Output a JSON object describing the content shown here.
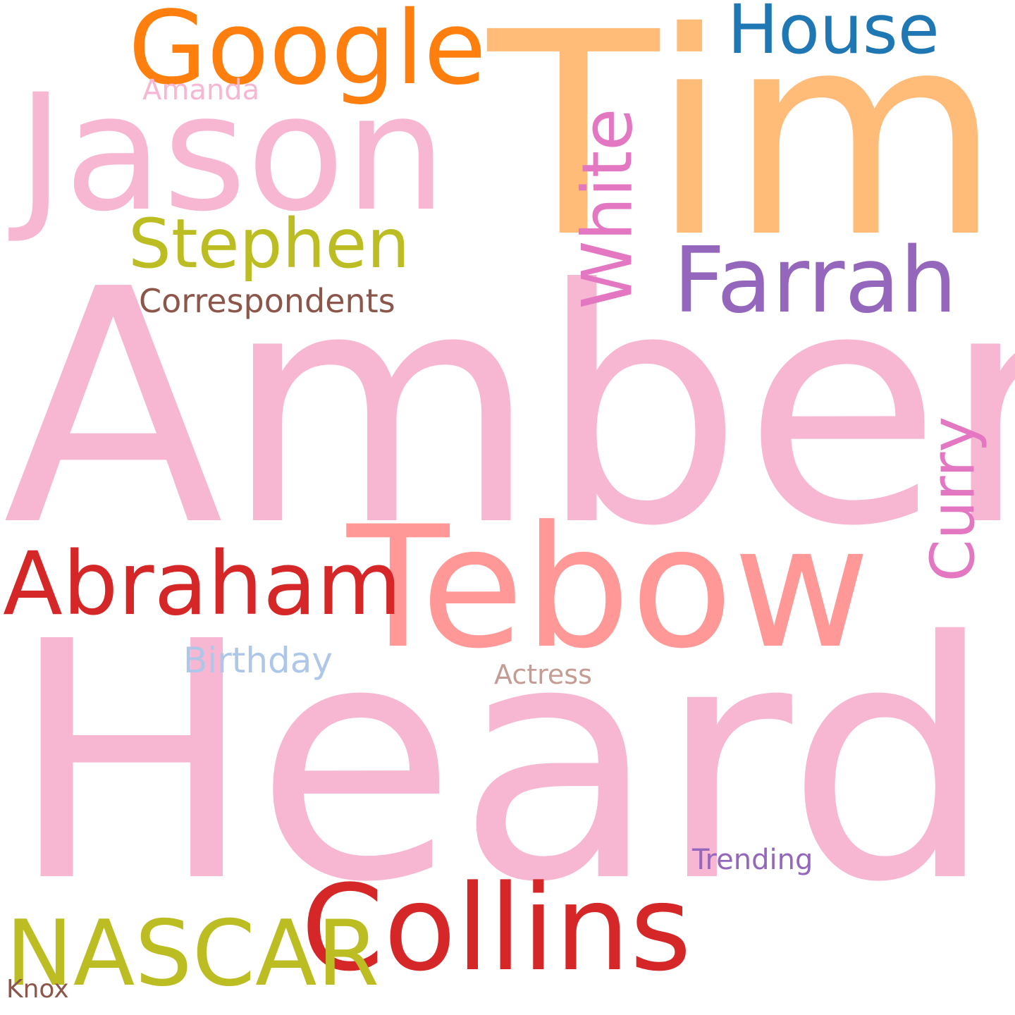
{
  "words": [
    {
      "text": "Heard",
      "color": "#f7b6d2"
    },
    {
      "text": "Amber",
      "color": "#f7b6d2"
    },
    {
      "text": "Tim",
      "color": "#ffbb78"
    },
    {
      "text": "Jason",
      "color": "#f7b6d2"
    },
    {
      "text": "Tebow",
      "color": "#ff9896"
    },
    {
      "text": "Collins",
      "color": "#d62728"
    },
    {
      "text": "Google",
      "color": "#ff7f0e"
    },
    {
      "text": "Abraham",
      "color": "#d62728"
    },
    {
      "text": "Farrah",
      "color": "#9467bd"
    },
    {
      "text": "NASCAR",
      "color": "#bcbd22"
    },
    {
      "text": "House",
      "color": "#1f77b4"
    },
    {
      "text": "Stephen",
      "color": "#bcbd22"
    },
    {
      "text": "White",
      "color": "#e377c2"
    },
    {
      "text": "Curry",
      "color": "#e377c2"
    },
    {
      "text": "Correspondents",
      "color": "#8c564b"
    },
    {
      "text": "Birthday",
      "color": "#aec7e8"
    },
    {
      "text": "Trending",
      "color": "#9467bd"
    },
    {
      "text": "Actress",
      "color": "#c49c94"
    },
    {
      "text": "Amanda",
      "color": "#f7b6d2"
    },
    {
      "text": "Knox",
      "color": "#8c564b"
    }
  ]
}
